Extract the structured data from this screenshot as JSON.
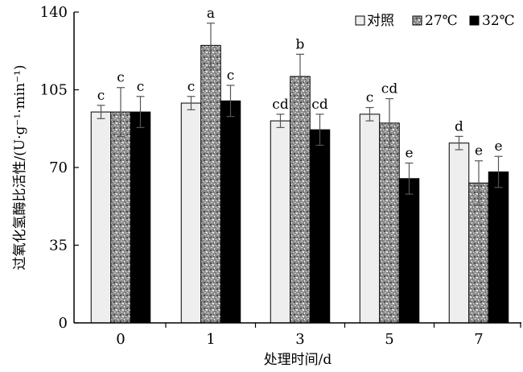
{
  "chart_data": {
    "type": "bar",
    "title": "",
    "xlabel": "处理时间/d",
    "ylabel": "过氧化氢酶比活性/(U·g⁻¹·min⁻¹)",
    "categories": [
      "0",
      "1",
      "3",
      "5",
      "7"
    ],
    "ylim": [
      0,
      140
    ],
    "yticks": [
      0,
      35,
      70,
      105,
      140
    ],
    "grid": false,
    "legend_position": "top-right",
    "series": [
      {
        "name": "对照",
        "pattern": "plain",
        "color": "#eeeeee",
        "values": [
          95,
          99,
          91,
          94,
          81
        ],
        "errors": [
          3,
          3,
          3,
          3,
          3
        ],
        "significance": [
          "c",
          "c",
          "cd",
          "c",
          "d"
        ]
      },
      {
        "name": "27℃",
        "pattern": "speckled",
        "color": "#9a9a9a",
        "values": [
          95,
          125,
          111,
          90,
          63
        ],
        "errors": [
          11,
          10,
          10,
          11,
          10
        ],
        "significance": [
          "c",
          "a",
          "b",
          "cd",
          "e"
        ]
      },
      {
        "name": "32℃",
        "pattern": "solid",
        "color": "#000000",
        "values": [
          95,
          100,
          87,
          65,
          68
        ],
        "errors": [
          7,
          7,
          7,
          7,
          7
        ],
        "significance": [
          "c",
          "c",
          "cd",
          "e",
          "e"
        ]
      }
    ]
  }
}
